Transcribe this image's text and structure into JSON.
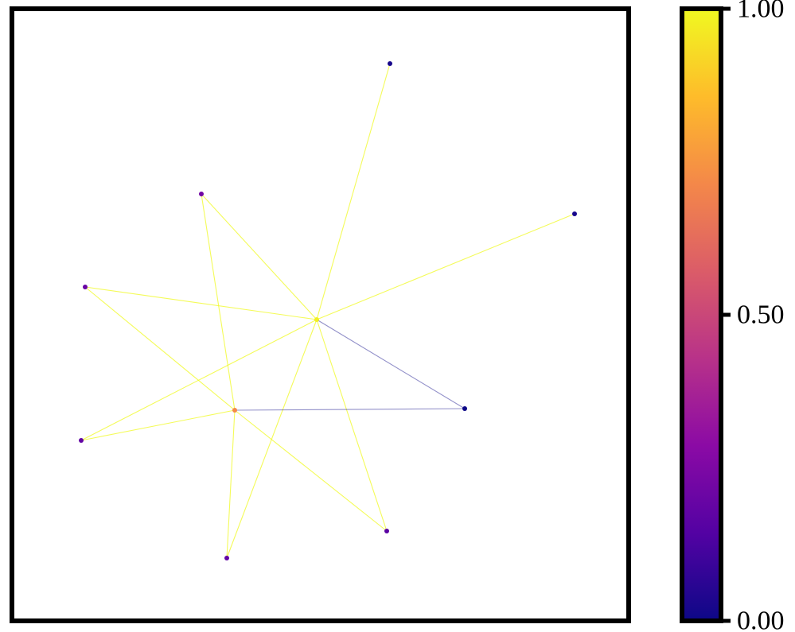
{
  "chart_data": {
    "type": "network",
    "colormap": "plasma",
    "colorbar": {
      "min": 0.0,
      "max": 1.0,
      "ticks": [
        {
          "value": 0.0,
          "label": "0.00"
        },
        {
          "value": 0.5,
          "label": "0.50"
        },
        {
          "value": 1.0,
          "label": "1.00"
        }
      ],
      "stops": [
        "#0d0887",
        "#5302a3",
        "#8b0aa5",
        "#b83289",
        "#db5c68",
        "#f48849",
        "#febc2a",
        "#f0f921"
      ]
    },
    "nodes": [
      {
        "id": "hub",
        "color_value": 0.98
      },
      {
        "id": "n2",
        "color_value": 0.72
      },
      {
        "id": "n_top",
        "color_value": 0.02
      },
      {
        "id": "n_right",
        "color_value": 0.02
      },
      {
        "id": "n_upper_left",
        "color_value": 0.22
      },
      {
        "id": "n_left",
        "color_value": 0.2
      },
      {
        "id": "n_lower_left",
        "color_value": 0.18
      },
      {
        "id": "n_bottom",
        "color_value": 0.18
      },
      {
        "id": "n_lower_right",
        "color_value": 0.16
      },
      {
        "id": "n_mid_right",
        "color_value": 0.0
      }
    ],
    "edges": [
      {
        "source": "hub",
        "target": "n_top",
        "color_value": 1.0
      },
      {
        "source": "hub",
        "target": "n_right",
        "color_value": 1.0
      },
      {
        "source": "hub",
        "target": "n_upper_left",
        "color_value": 1.0
      },
      {
        "source": "hub",
        "target": "n_left",
        "color_value": 1.0
      },
      {
        "source": "hub",
        "target": "n_lower_left",
        "color_value": 1.0
      },
      {
        "source": "hub",
        "target": "n_bottom",
        "color_value": 1.0
      },
      {
        "source": "hub",
        "target": "n_lower_right",
        "color_value": 1.0
      },
      {
        "source": "hub",
        "target": "n_mid_right",
        "color_value": 0.0
      },
      {
        "source": "n2",
        "target": "n_upper_left",
        "color_value": 1.0
      },
      {
        "source": "n2",
        "target": "n_left",
        "color_value": 1.0
      },
      {
        "source": "n2",
        "target": "n_lower_left",
        "color_value": 1.0
      },
      {
        "source": "n2",
        "target": "n_bottom",
        "color_value": 1.0
      },
      {
        "source": "n2",
        "target": "n_lower_right",
        "color_value": 1.0
      },
      {
        "source": "n2",
        "target": "n_mid_right",
        "color_value": 0.0
      }
    ]
  }
}
